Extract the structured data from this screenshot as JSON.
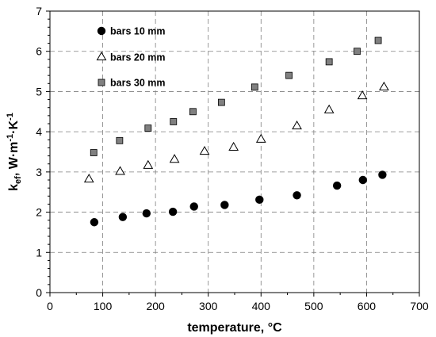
{
  "chart_data": {
    "type": "scatter",
    "xlabel": "temperature, °C",
    "ylabel": {
      "base": "k",
      "sub": "ef",
      "rest": ", W·m",
      "sup1": "-1",
      "mid": "·K",
      "sup2": "-1"
    },
    "xlim": [
      0,
      700
    ],
    "ylim": [
      0,
      7
    ],
    "x_ticks": [
      0,
      100,
      200,
      300,
      400,
      500,
      600,
      700
    ],
    "y_ticks": [
      0,
      1,
      2,
      3,
      4,
      5,
      6,
      7
    ],
    "grid": true,
    "legend_position": "top-left",
    "series": [
      {
        "name": "bars 10 mm",
        "marker": "circle",
        "color": "#000000",
        "x": [
          84,
          138,
          183,
          233,
          273,
          331,
          397,
          468,
          544,
          593,
          630
        ],
        "y": [
          1.75,
          1.88,
          1.97,
          2.01,
          2.14,
          2.18,
          2.31,
          2.42,
          2.66,
          2.8,
          2.93
        ]
      },
      {
        "name": "bars 20 mm",
        "marker": "triangle-open",
        "color": "#000000",
        "x": [
          74,
          133,
          186,
          236,
          293,
          348,
          400,
          468,
          529,
          592,
          633
        ],
        "y": [
          2.82,
          3.01,
          3.16,
          3.31,
          3.51,
          3.61,
          3.81,
          4.14,
          4.54,
          4.89,
          5.11
        ]
      },
      {
        "name": "bars 30 mm",
        "marker": "square",
        "color": "#808080",
        "x": [
          83,
          132,
          186,
          234,
          271,
          325,
          388,
          453,
          529,
          582,
          622
        ],
        "y": [
          3.48,
          3.78,
          4.09,
          4.25,
          4.5,
          4.73,
          5.11,
          5.4,
          5.74,
          6.0,
          6.27
        ]
      }
    ]
  }
}
